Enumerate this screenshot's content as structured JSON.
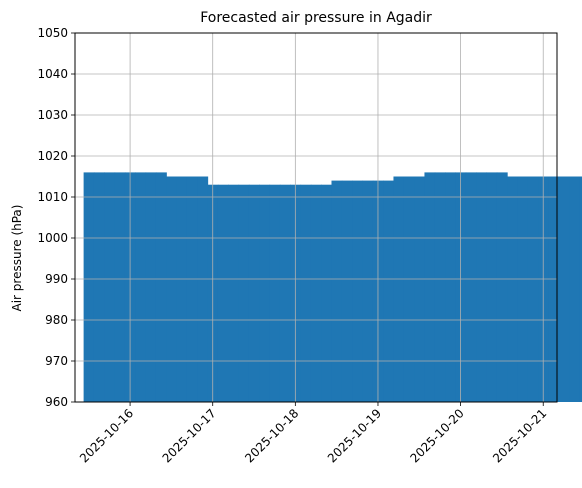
{
  "chart_data": {
    "type": "bar",
    "title": "Forecasted air pressure in Agadir",
    "xlabel": "",
    "ylabel": "Air pressure (hPa)",
    "ylim": [
      960,
      1050
    ],
    "yticks": [
      960,
      970,
      980,
      990,
      1000,
      1010,
      1020,
      1030,
      1040,
      1050
    ],
    "xlim": [
      "2025-10-15 08:00",
      "2025-10-21 04:00"
    ],
    "xticks": [
      "2025-10-16",
      "2025-10-17",
      "2025-10-18",
      "2025-10-19",
      "2025-10-20",
      "2025-10-21"
    ],
    "grid": true,
    "bar_color": "#1f77b4",
    "bar_start": "2025-10-15 12:00",
    "bar_step_hours": 3,
    "values": [
      1016,
      1016,
      1016,
      1016,
      1016,
      1016,
      1016,
      1016,
      1015,
      1015,
      1015,
      1015,
      1013,
      1013,
      1013,
      1013,
      1013,
      1013,
      1013,
      1013,
      1013,
      1013,
      1013,
      1013,
      1014,
      1014,
      1014,
      1014,
      1014,
      1014,
      1015,
      1015,
      1015,
      1016,
      1016,
      1016,
      1016,
      1016,
      1016,
      1016,
      1016,
      1015,
      1015,
      1015,
      1015,
      1015,
      1015,
      1015,
      1015,
      1015,
      1015,
      1015,
      1014,
      1012
    ]
  }
}
